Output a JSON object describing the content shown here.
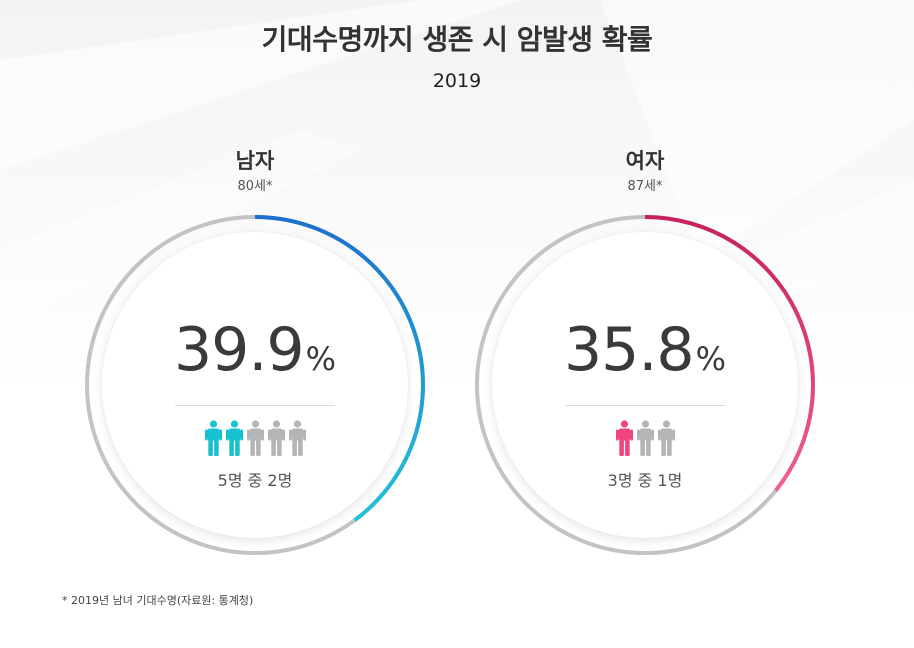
{
  "title": "기대수명까지 생존 시 암발생 확률",
  "subtitle": "2019",
  "colors": {
    "male_gradient": [
      "#1e6fcf",
      "#21c3d6"
    ],
    "female_gradient": [
      "#c8205f",
      "#f25e8f"
    ],
    "track": "#c3c3c3",
    "person_male": "#17c1cf",
    "person_female": "#f0457f",
    "person_gray": "#b5b5b5"
  },
  "chart_data": [
    {
      "type": "pie",
      "gender": "남자",
      "age": "80세*",
      "value": 39.9,
      "value_text": "39.9",
      "unit": "%",
      "ratio_text": "5명 중 2명",
      "people_total": 5,
      "people_highlight": 2
    },
    {
      "type": "pie",
      "gender": "여자",
      "age": "87세*",
      "value": 35.8,
      "value_text": "35.8",
      "unit": "%",
      "ratio_text": "3명 중 1명",
      "people_total": 3,
      "people_highlight": 1
    }
  ],
  "footnote": "* 2019년 남녀 기대수명(자료원: 통계청)"
}
